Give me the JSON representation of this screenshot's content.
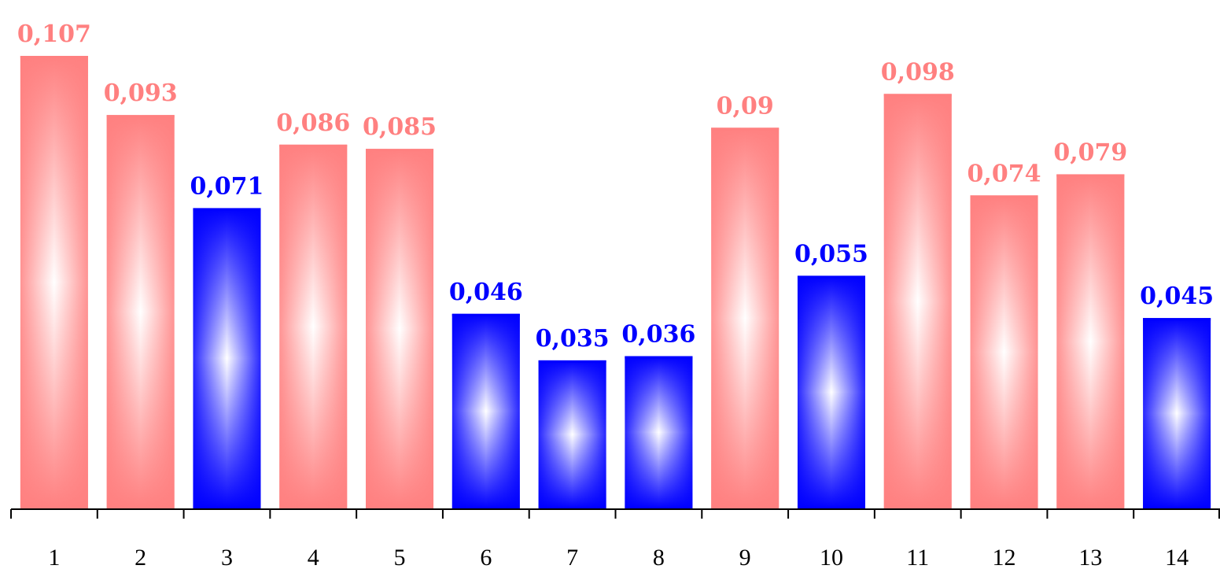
{
  "chart_data": {
    "type": "bar",
    "categories": [
      "1",
      "2",
      "3",
      "4",
      "5",
      "6",
      "7",
      "8",
      "9",
      "10",
      "11",
      "12",
      "13",
      "14"
    ],
    "values": [
      0.107,
      0.093,
      0.071,
      0.086,
      0.085,
      0.046,
      0.035,
      0.036,
      0.09,
      0.055,
      0.098,
      0.074,
      0.079,
      0.045
    ],
    "data_labels": [
      "0,107",
      "0,093",
      "0,071",
      "0,086",
      "0,085",
      "0,046",
      "0,035",
      "0,036",
      "0,09",
      "0,055",
      "0,098",
      "0,074",
      "0,079",
      "0,045"
    ],
    "bar_groups": [
      "red",
      "red",
      "blue",
      "red",
      "red",
      "blue",
      "blue",
      "blue",
      "red",
      "blue",
      "red",
      "red",
      "red",
      "blue"
    ],
    "ylim": [
      0,
      0.107
    ],
    "grid": false,
    "legend": "none",
    "colors": {
      "red": "#ff8080",
      "red_label": "#ff8080",
      "blue": "#0000ff",
      "blue_label": "#0000ff",
      "axis": "#000000"
    }
  }
}
